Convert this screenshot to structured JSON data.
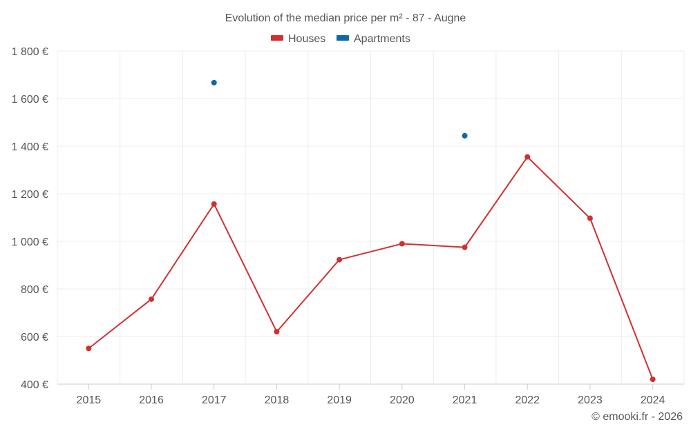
{
  "chart_data": {
    "type": "line",
    "title": "Evolution of the median price per m² - 87 - Augne",
    "categories": [
      "2015",
      "2016",
      "2017",
      "2018",
      "2019",
      "2020",
      "2021",
      "2022",
      "2023",
      "2024"
    ],
    "y_ticks": [
      400,
      600,
      800,
      1000,
      1200,
      1400,
      1600,
      1800
    ],
    "y_tick_labels": [
      "400 €",
      "600 €",
      "800 €",
      "1 000 €",
      "1 200 €",
      "1 400 €",
      "1 600 €",
      "1 800 €"
    ],
    "ylim": [
      400,
      1800
    ],
    "grid": true,
    "legend_position": "top-center",
    "series": [
      {
        "name": "Houses",
        "color": "#d32f2f",
        "values": [
          550,
          757,
          1157,
          620,
          923,
          990,
          975,
          1355,
          1097,
          420
        ]
      },
      {
        "name": "Apartments",
        "color": "#0d6aa6",
        "values": [
          null,
          null,
          1667,
          null,
          null,
          null,
          1444,
          null,
          null,
          null
        ]
      }
    ],
    "credit": "© emooki.fr - 2026"
  }
}
